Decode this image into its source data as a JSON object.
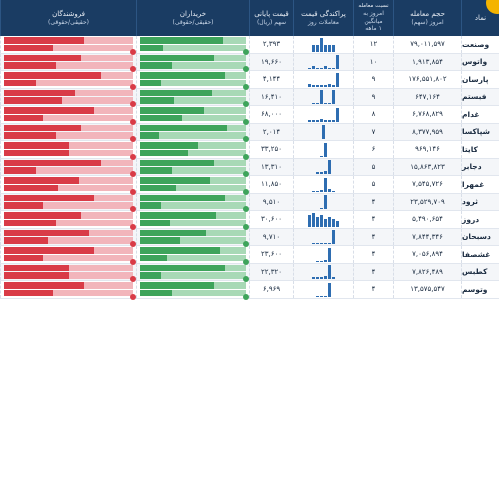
{
  "header": {
    "symbol": "نماد",
    "volume": "حجم معامله",
    "volume_sub": "امروز (سهم)",
    "ratio": "نسبت معامله",
    "ratio_sub": "امروز به میانگین",
    "ratio_sub2": "۱ ماهه",
    "dist": "پراکندگی قیمت",
    "dist_sub": "معاملات روز",
    "price": "قیمت پایانی",
    "price_sub": "سهم (ریال)",
    "buyers": "خریداران",
    "buyers_sub": "(حقیقی/حقوقی)",
    "sellers": "فروشندگان",
    "sellers_sub": "(حقیقی/حقوقی)"
  },
  "rows": [
    {
      "sym": "وصنعت",
      "vol": "۷۹,۰۱۱,۵۹۷",
      "ratio": "۱۲",
      "price": "۲,۳۹۳",
      "dist": [
        1,
        1,
        2,
        1,
        1,
        1
      ],
      "buy": [
        0.78,
        0.22
      ],
      "sell": [
        0.62,
        0.38
      ]
    },
    {
      "sym": "واتوس",
      "vol": "۱,۹۱۳,۸۵۴",
      "ratio": "۱۰",
      "price": "۱۹,۶۶۰",
      "dist": [
        1,
        2,
        1,
        1,
        2,
        1,
        1,
        11
      ],
      "buy": [
        0.7,
        0.3
      ],
      "sell": [
        0.6,
        0.4
      ]
    },
    {
      "sym": "پارسان",
      "vol": "۱۷۶,۵۵۱,۸۰۲",
      "ratio": "۹",
      "price": "۴,۱۴۴",
      "dist": [
        2,
        1,
        1,
        1,
        1,
        2,
        1,
        12
      ],
      "buy": [
        0.8,
        0.2
      ],
      "sell": [
        0.75,
        0.25
      ]
    },
    {
      "sym": "فبستم",
      "vol": "۶۴۷,۱۶۴",
      "ratio": "۹",
      "price": "۱۶,۴۱۰",
      "dist": [
        1,
        1,
        14,
        1,
        1,
        14
      ],
      "buy": [
        0.68,
        0.32
      ],
      "sell": [
        0.55,
        0.45
      ]
    },
    {
      "sym": "غدام",
      "vol": "۶,۷۶۸,۸۲۹",
      "ratio": "۸",
      "price": "۶۸,۰۰۰",
      "dist": [
        1,
        1,
        1,
        2,
        1,
        1,
        1,
        12
      ],
      "buy": [
        0.6,
        0.4
      ],
      "sell": [
        0.7,
        0.3
      ]
    },
    {
      "sym": "شپاکسا",
      "vol": "۸,۳۷۷,۹۵۹",
      "ratio": "۷",
      "price": "۲,۰۱۴",
      "dist": [
        14
      ],
      "buy": [
        0.82,
        0.18
      ],
      "sell": [
        0.6,
        0.4
      ]
    },
    {
      "sym": "کایتا",
      "vol": "۹۶۹,۱۴۶",
      "ratio": "۶",
      "price": "۳۳,۲۵۰",
      "dist": [
        1,
        14
      ],
      "buy": [
        0.55,
        0.45
      ],
      "sell": [
        0.5,
        0.5
      ]
    },
    {
      "sym": "دجابر",
      "vol": "۱۵,۸۶۳,۸۲۳",
      "ratio": "۵",
      "price": "۱۳,۳۱۰",
      "dist": [
        2,
        2,
        3,
        14
      ],
      "buy": [
        0.7,
        0.3
      ],
      "sell": [
        0.75,
        0.25
      ]
    },
    {
      "sym": "غمهرا",
      "vol": "۷,۵۴۵,۷۲۶",
      "ratio": "۵",
      "price": "۱۱,۸۵۰",
      "dist": [
        1,
        1,
        2,
        14,
        3,
        1
      ],
      "buy": [
        0.66,
        0.34
      ],
      "sell": [
        0.58,
        0.42
      ]
    },
    {
      "sym": "ثرود",
      "vol": "۲۳,۵۲۹,۷۰۹",
      "ratio": "۴",
      "price": "۹,۵۱۰",
      "dist": [
        1,
        14
      ],
      "buy": [
        0.8,
        0.2
      ],
      "sell": [
        0.7,
        0.3
      ]
    },
    {
      "sym": "دروز",
      "vol": "۵,۴۹۰,۶۵۴",
      "ratio": "۴",
      "price": "۳۰,۶۰۰",
      "dist": [
        6,
        7,
        5,
        6,
        4,
        5,
        4,
        3
      ],
      "buy": [
        0.72,
        0.28
      ],
      "sell": [
        0.6,
        0.4
      ]
    },
    {
      "sym": "دسبحان",
      "vol": "۷,۸۴۴,۳۴۶",
      "ratio": "۴",
      "price": "۹,۷۱۰",
      "dist": [
        1,
        1,
        1,
        1,
        1,
        14
      ],
      "buy": [
        0.62,
        0.38
      ],
      "sell": [
        0.66,
        0.34
      ]
    },
    {
      "sym": "غشصفا",
      "vol": "۷,۰۵۶,۸۹۴",
      "ratio": "۴",
      "price": "۲۳,۶۰۰",
      "dist": [
        1,
        1,
        2,
        14
      ],
      "buy": [
        0.75,
        0.25
      ],
      "sell": [
        0.7,
        0.3
      ]
    },
    {
      "sym": "کطبس",
      "vol": "۷,۸۲۶,۴۸۹",
      "ratio": "۴",
      "price": "۲۲,۳۲۰",
      "dist": [
        2,
        2,
        2,
        3,
        14,
        2
      ],
      "buy": [
        0.8,
        0.2
      ],
      "sell": [
        0.5,
        0.5
      ]
    },
    {
      "sym": "وتوسم",
      "vol": "۱۳,۵۷۵,۵۴۷",
      "ratio": "۴",
      "price": "۶,۹۶۹",
      "dist": [
        1,
        1,
        1,
        14
      ],
      "buy": [
        0.7,
        0.3
      ],
      "sell": [
        0.62,
        0.38
      ]
    }
  ],
  "colors": {
    "header": "#1a3c63",
    "buy_real": "#3ea45b",
    "buy_legal": "#a8d9b6",
    "sell_real": "#d93b47",
    "sell_legal": "#f2b5bb",
    "dist_bar": "#2e6db1"
  }
}
